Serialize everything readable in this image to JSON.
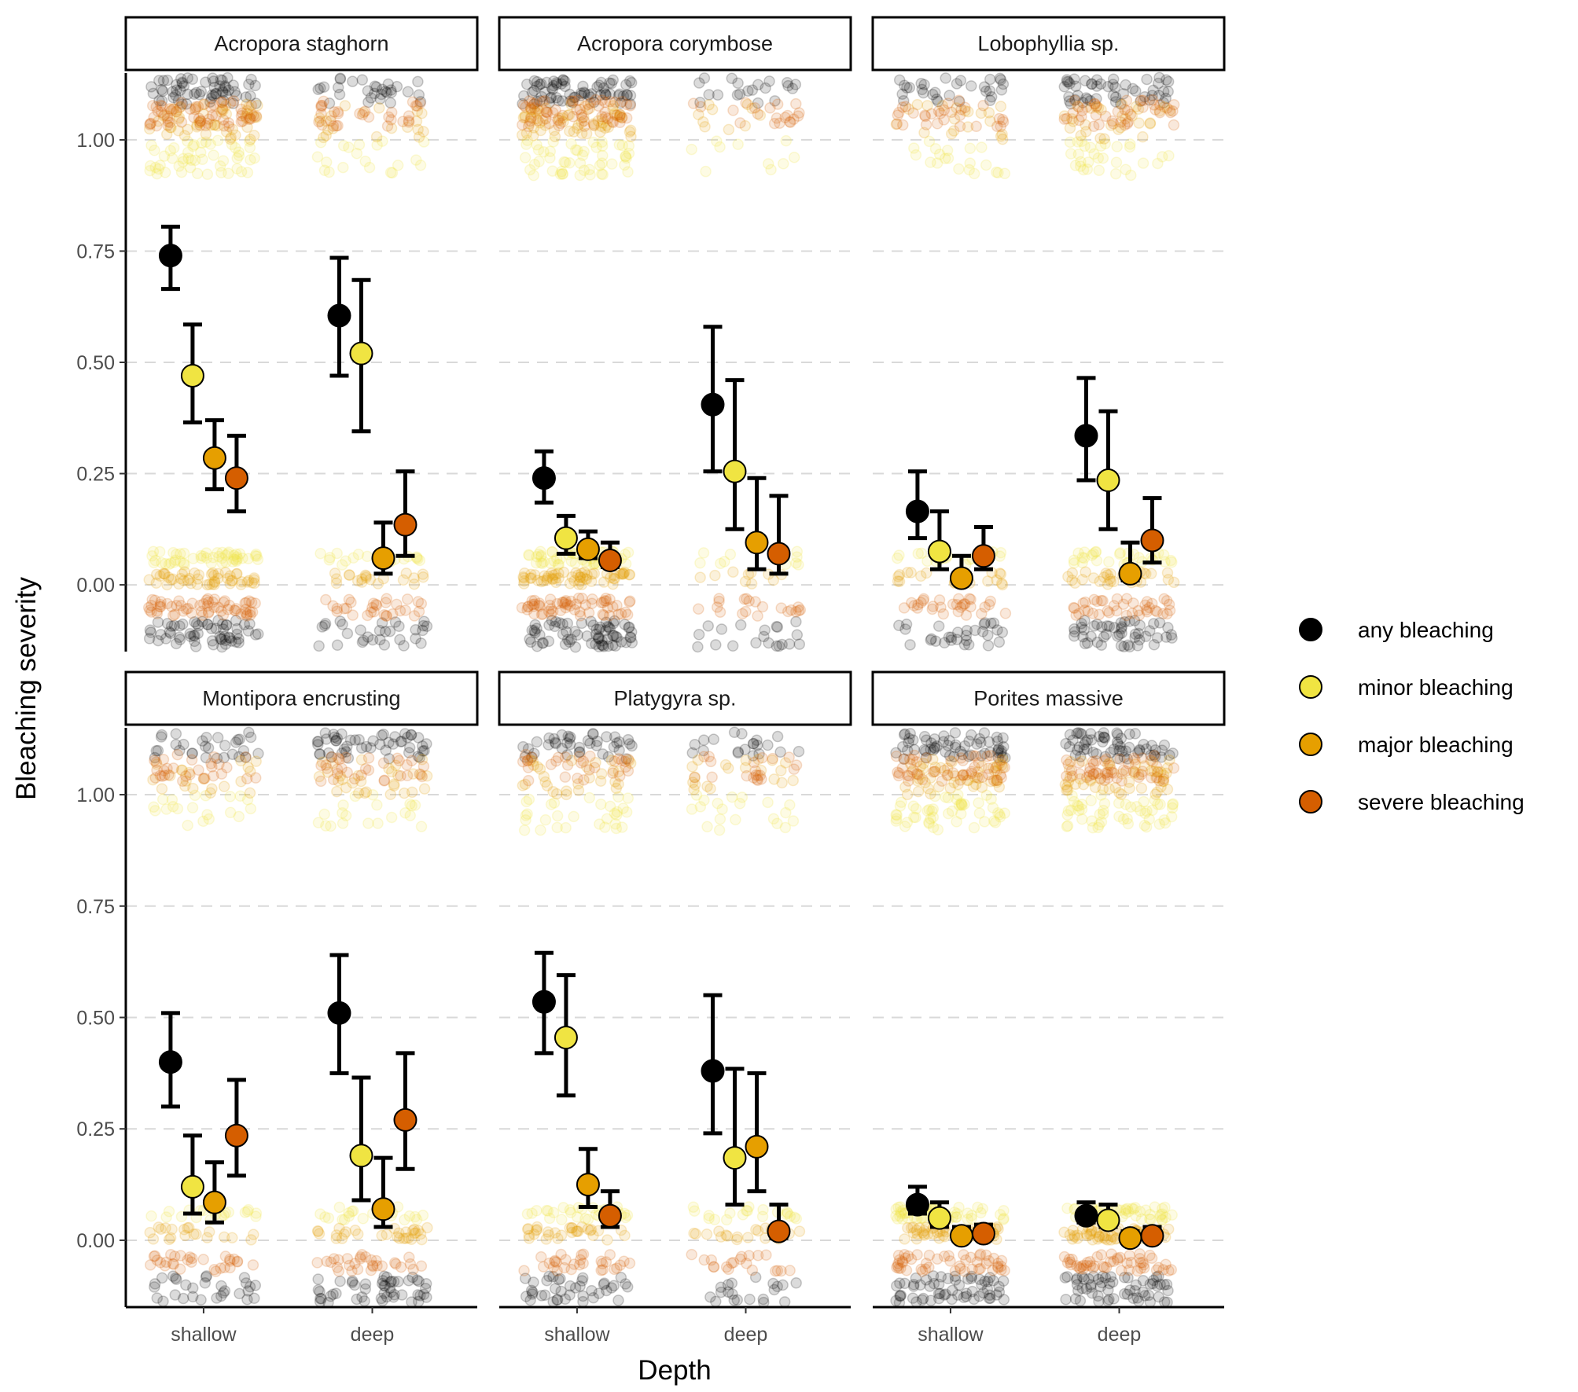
{
  "chart_data": {
    "type": "scatter",
    "title": "",
    "xlabel": "Depth",
    "ylabel": "Bleaching severity",
    "x_categories": [
      "shallow",
      "deep"
    ],
    "y_ticks": [
      "0.00",
      "0.25",
      "0.50",
      "0.75",
      "1.00"
    ],
    "ylim": [
      -0.15,
      1.15
    ],
    "grid": "horizontal dashed major gridlines",
    "legend_position": "right",
    "series": [
      {
        "name": "any bleaching",
        "color": "#000000"
      },
      {
        "name": "minor bleaching",
        "color": "#f0e442"
      },
      {
        "name": "major bleaching",
        "color": "#e69f00"
      },
      {
        "name": "severe bleaching",
        "color": "#d55e00"
      }
    ],
    "panels": [
      {
        "title": "Acropora staghorn",
        "shallow": [
          {
            "mean": 0.74,
            "lo": 0.665,
            "hi": 0.805
          },
          {
            "mean": 0.47,
            "lo": 0.365,
            "hi": 0.585
          },
          {
            "mean": 0.285,
            "lo": 0.215,
            "hi": 0.37
          },
          {
            "mean": 0.24,
            "lo": 0.165,
            "hi": 0.335
          }
        ],
        "deep": [
          {
            "mean": 0.605,
            "lo": 0.47,
            "hi": 0.735
          },
          {
            "mean": 0.52,
            "lo": 0.345,
            "hi": 0.685
          },
          {
            "mean": 0.06,
            "lo": 0.025,
            "hi": 0.14
          },
          {
            "mean": 0.135,
            "lo": 0.065,
            "hi": 0.255
          }
        ],
        "raw_density": {
          "shallow": [
            6,
            5,
            5,
            6
          ],
          "deep": [
            3,
            2,
            2,
            3
          ]
        }
      },
      {
        "title": "Acropora corymbose",
        "shallow": [
          {
            "mean": 0.24,
            "lo": 0.185,
            "hi": 0.3
          },
          {
            "mean": 0.105,
            "lo": 0.07,
            "hi": 0.155
          },
          {
            "mean": 0.08,
            "lo": 0.06,
            "hi": 0.12
          },
          {
            "mean": 0.055,
            "lo": 0.04,
            "hi": 0.095
          }
        ],
        "deep": [
          {
            "mean": 0.405,
            "lo": 0.255,
            "hi": 0.58
          },
          {
            "mean": 0.255,
            "lo": 0.125,
            "hi": 0.46
          },
          {
            "mean": 0.095,
            "lo": 0.035,
            "hi": 0.24
          },
          {
            "mean": 0.07,
            "lo": 0.025,
            "hi": 0.2
          }
        ],
        "raw_density": {
          "shallow": [
            7,
            5,
            6,
            6
          ],
          "deep": [
            2,
            1,
            1,
            2
          ]
        }
      },
      {
        "title": "Lobophyllia sp.",
        "shallow": [
          {
            "mean": 0.165,
            "lo": 0.105,
            "hi": 0.255
          },
          {
            "mean": 0.075,
            "lo": 0.035,
            "hi": 0.165
          },
          {
            "mean": 0.015,
            "lo": 0.005,
            "hi": 0.065
          },
          {
            "mean": 0.065,
            "lo": 0.035,
            "hi": 0.13
          }
        ],
        "deep": [
          {
            "mean": 0.335,
            "lo": 0.235,
            "hi": 0.465
          },
          {
            "mean": 0.235,
            "lo": 0.125,
            "hi": 0.39
          },
          {
            "mean": 0.025,
            "lo": 0.01,
            "hi": 0.095
          },
          {
            "mean": 0.1,
            "lo": 0.05,
            "hi": 0.195
          }
        ],
        "raw_density": {
          "shallow": [
            3,
            2,
            2,
            3
          ],
          "deep": [
            5,
            3,
            3,
            4
          ]
        }
      },
      {
        "title": "Montipora encrusting",
        "shallow": [
          {
            "mean": 0.4,
            "lo": 0.3,
            "hi": 0.51
          },
          {
            "mean": 0.12,
            "lo": 0.06,
            "hi": 0.235
          },
          {
            "mean": 0.085,
            "lo": 0.04,
            "hi": 0.175
          },
          {
            "mean": 0.235,
            "lo": 0.145,
            "hi": 0.36
          }
        ],
        "deep": [
          {
            "mean": 0.51,
            "lo": 0.375,
            "hi": 0.64
          },
          {
            "mean": 0.19,
            "lo": 0.09,
            "hi": 0.365
          },
          {
            "mean": 0.07,
            "lo": 0.03,
            "hi": 0.185
          },
          {
            "mean": 0.27,
            "lo": 0.16,
            "hi": 0.42
          }
        ],
        "raw_density": {
          "shallow": [
            3,
            2,
            2,
            3
          ],
          "deep": [
            5,
            2,
            3,
            3
          ]
        }
      },
      {
        "title": "Platygyra sp.",
        "shallow": [
          {
            "mean": 0.535,
            "lo": 0.42,
            "hi": 0.645
          },
          {
            "mean": 0.455,
            "lo": 0.325,
            "hi": 0.595
          },
          {
            "mean": 0.125,
            "lo": 0.075,
            "hi": 0.205
          },
          {
            "mean": 0.055,
            "lo": 0.03,
            "hi": 0.11
          }
        ],
        "deep": [
          {
            "mean": 0.38,
            "lo": 0.24,
            "hi": 0.55
          },
          {
            "mean": 0.185,
            "lo": 0.08,
            "hi": 0.385
          },
          {
            "mean": 0.21,
            "lo": 0.11,
            "hi": 0.375
          },
          {
            "mean": 0.02,
            "lo": 0.005,
            "hi": 0.08
          }
        ],
        "raw_density": {
          "shallow": [
            4,
            3,
            3,
            3
          ],
          "deep": [
            2,
            2,
            2,
            2
          ]
        }
      },
      {
        "title": "Porites massive",
        "shallow": [
          {
            "mean": 0.08,
            "lo": 0.06,
            "hi": 0.12
          },
          {
            "mean": 0.05,
            "lo": 0.03,
            "hi": 0.085
          },
          {
            "mean": 0.01,
            "lo": 0.005,
            "hi": 0.03
          },
          {
            "mean": 0.015,
            "lo": 0.005,
            "hi": 0.035
          }
        ],
        "deep": [
          {
            "mean": 0.055,
            "lo": 0.04,
            "hi": 0.085
          },
          {
            "mean": 0.045,
            "lo": 0.03,
            "hi": 0.08
          },
          {
            "mean": 0.005,
            "lo": 0.0,
            "hi": 0.02
          },
          {
            "mean": 0.01,
            "lo": 0.0,
            "hi": 0.03
          }
        ],
        "raw_density": {
          "shallow": [
            6,
            5,
            5,
            5
          ],
          "deep": [
            6,
            5,
            5,
            5
          ]
        }
      }
    ]
  }
}
